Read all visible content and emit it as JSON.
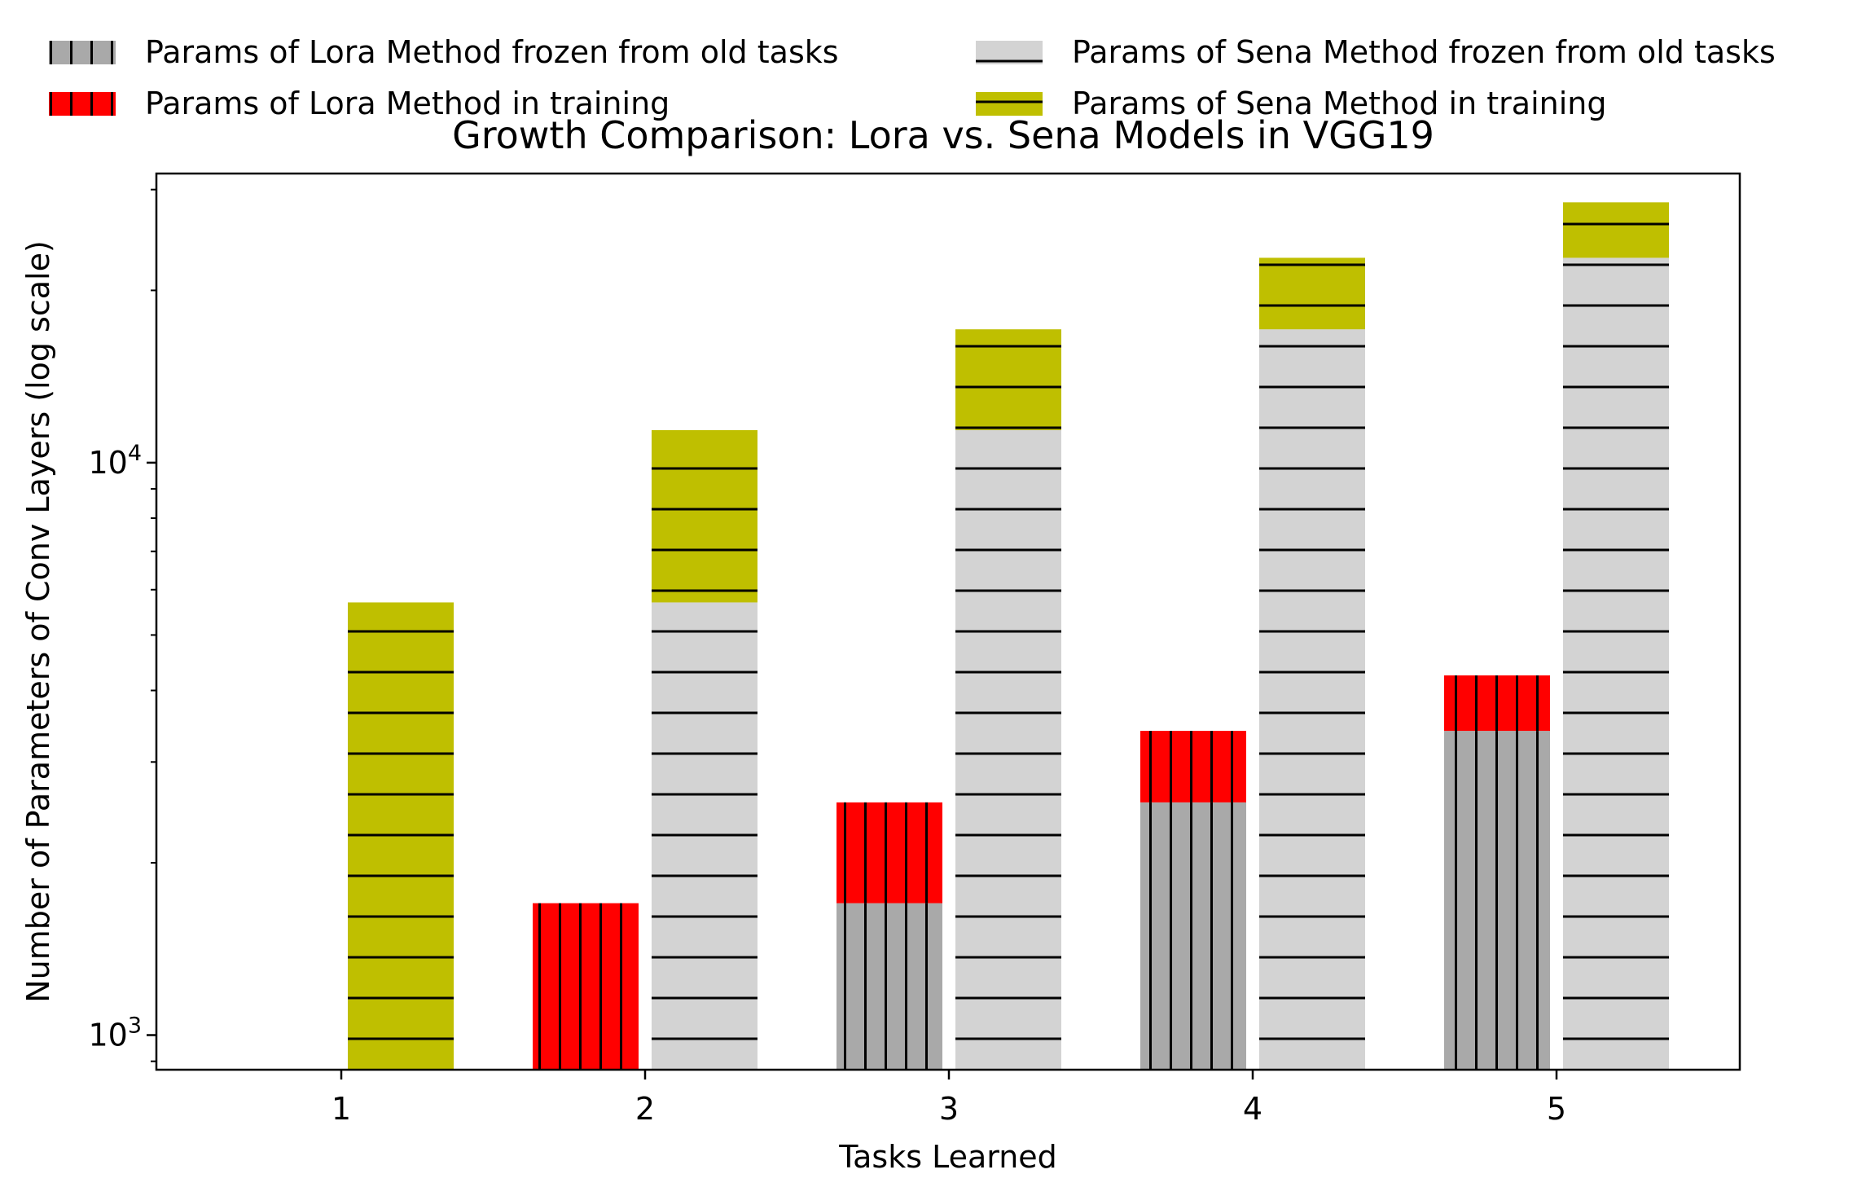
{
  "chart_data": {
    "type": "bar",
    "stacked": true,
    "title": "Growth Comparison: Lora vs. Sena Models in VGG19",
    "xlabel": "Tasks Learned",
    "ylabel": "Number of Parameters of Conv Layers (log scale)",
    "yscale": "log",
    "ylim": [
      870,
      32000
    ],
    "yticks": [
      {
        "value": 1000,
        "base": "10",
        "exp": "3"
      },
      {
        "value": 10000,
        "base": "10",
        "exp": "4"
      }
    ],
    "categories": [
      "1",
      "2",
      "3",
      "4",
      "5"
    ],
    "legend_position": "top",
    "series": [
      {
        "name": "Params of Lora Method frozen from old tasks",
        "method": "lora",
        "role": "frozen",
        "color": "#a9a9a9",
        "hatch": "vertical",
        "values": [
          0,
          0,
          1700,
          2550,
          3400
        ]
      },
      {
        "name": "Params of Lora Method in training",
        "method": "lora",
        "role": "training",
        "color": "#ff0000",
        "hatch": "vertical",
        "values": [
          0,
          1700,
          850,
          850,
          850
        ]
      },
      {
        "name": "Params of Sena Method frozen from old tasks",
        "method": "sena",
        "role": "frozen",
        "color": "#d3d3d3",
        "hatch": "horizontal",
        "values": [
          0,
          5700,
          11400,
          17100,
          22800
        ]
      },
      {
        "name": "Params of Sena Method in training",
        "method": "sena",
        "role": "training",
        "color": "#bfbf00",
        "hatch": "horizontal",
        "values": [
          5700,
          5700,
          5700,
          5700,
          5700
        ]
      }
    ],
    "legend_order": [
      0,
      2,
      1,
      3
    ]
  }
}
